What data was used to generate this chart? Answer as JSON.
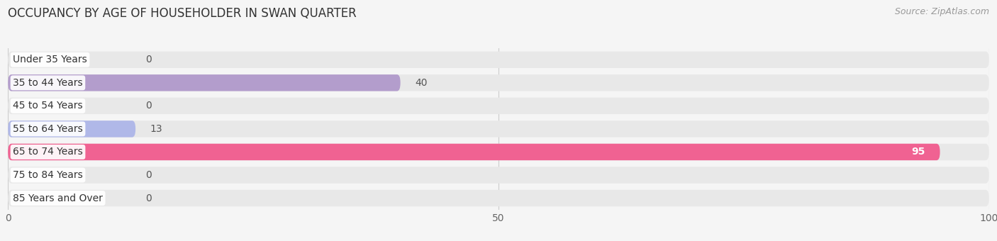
{
  "title": "OCCUPANCY BY AGE OF HOUSEHOLDER IN SWAN QUARTER",
  "source": "Source: ZipAtlas.com",
  "categories": [
    "Under 35 Years",
    "35 to 44 Years",
    "45 to 54 Years",
    "55 to 64 Years",
    "65 to 74 Years",
    "75 to 84 Years",
    "85 Years and Over"
  ],
  "values": [
    0,
    40,
    0,
    13,
    95,
    0,
    0
  ],
  "bar_colors": [
    "#a8d1e8",
    "#b39dcc",
    "#7ececa",
    "#b0b8e8",
    "#f06292",
    "#f5c897",
    "#f4a9a8"
  ],
  "xlim": [
    0,
    100
  ],
  "xticks": [
    0,
    50,
    100
  ],
  "title_fontsize": 12,
  "source_fontsize": 9,
  "tick_fontsize": 10,
  "label_fontsize": 10,
  "value_fontsize": 10,
  "background_color": "#f5f5f5",
  "bar_bg_color": "#e8e8e8"
}
